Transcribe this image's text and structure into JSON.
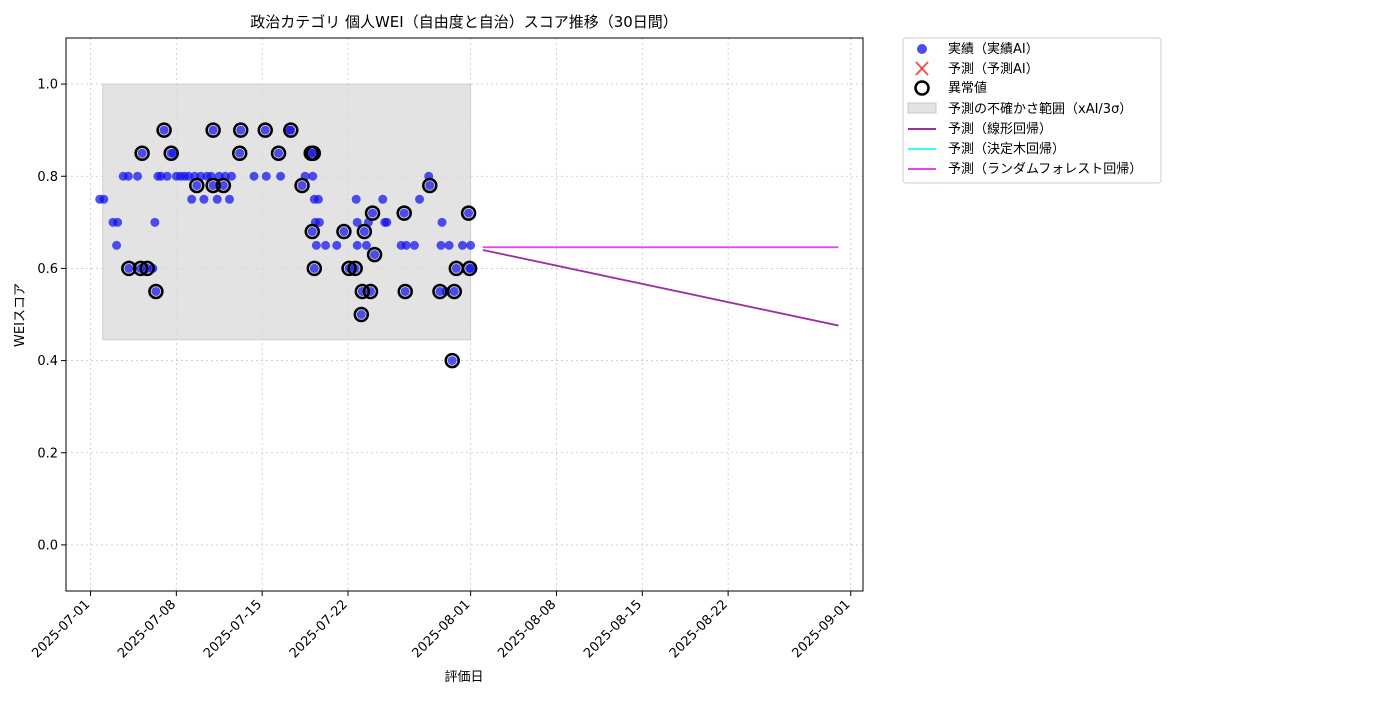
{
  "chart_data": {
    "type": "scatter",
    "title": "政治カテゴリ 個人WEI（自由度と自治）スコア推移（30日間）",
    "xlabel": "評価日",
    "ylabel": "WEIスコア",
    "xlim": [
      "2025-06-29",
      "2025-09-02"
    ],
    "ylim": [
      -0.1,
      1.1
    ],
    "x_ticks": [
      "2025-07-01",
      "2025-07-08",
      "2025-07-15",
      "2025-07-22",
      "2025-08-01",
      "2025-08-08",
      "2025-08-15",
      "2025-08-22",
      "2025-09-01"
    ],
    "y_ticks": [
      "0.0",
      "0.2",
      "0.4",
      "0.6",
      "0.8",
      "1.0"
    ],
    "grid": true,
    "legend_position": "outside-top-right",
    "legend": {
      "actual": "実績（実績AI）",
      "predicted": "予測（予測AI）",
      "anomaly": "異常値",
      "uncertainty": "予測の不確かさ範囲（xAI/3σ）",
      "linear": "予測（線形回帰）",
      "tree": "予測（決定木回帰）",
      "forest": "予測（ランダムフォレスト回帰）"
    },
    "colors": {
      "actual": "#1010ee",
      "predicted": "#ee3333",
      "anomaly": "#000000",
      "uncertainty": "#d9d9d9",
      "linear": "#9b30a0",
      "tree": "#33ffff",
      "forest": "#ee40ee"
    },
    "uncertainty_band": {
      "x": [
        "2025-07-02",
        "2025-08-01"
      ],
      "y": [
        0.445,
        1.0
      ]
    },
    "actual": [
      [
        "2025-07-01 18:00",
        0.75
      ],
      [
        "2025-07-02 02:00",
        0.75
      ],
      [
        "2025-07-02 20:00",
        0.7
      ],
      [
        "2025-07-03 05:00",
        0.7
      ],
      [
        "2025-07-03 03:00",
        0.65
      ],
      [
        "2025-07-03 16:00",
        0.8
      ],
      [
        "2025-07-04 02:00",
        0.8
      ],
      [
        "2025-07-04 03:00",
        0.6
      ],
      [
        "2025-07-04 20:00",
        0.8
      ],
      [
        "2025-07-05 05:00",
        0.85
      ],
      [
        "2025-07-05 02:00",
        0.6
      ],
      [
        "2025-07-05 15:00",
        0.6
      ],
      [
        "2025-07-06 02:00",
        0.6
      ],
      [
        "2025-07-06 08:00",
        0.55
      ],
      [
        "2025-07-06 06:00",
        0.7
      ],
      [
        "2025-07-06 12:00",
        0.8
      ],
      [
        "2025-07-06 18:00",
        0.8
      ],
      [
        "2025-07-07 00:00",
        0.9
      ],
      [
        "2025-07-07 06:00",
        0.8
      ],
      [
        "2025-07-07 14:00",
        0.85
      ],
      [
        "2025-07-07 18:00",
        0.85
      ],
      [
        "2025-07-08 00:00",
        0.8
      ],
      [
        "2025-07-08 08:00",
        0.8
      ],
      [
        "2025-07-08 16:00",
        0.8
      ],
      [
        "2025-07-09 00:00",
        0.8
      ],
      [
        "2025-07-09 06:00",
        0.75
      ],
      [
        "2025-07-09 12:00",
        0.8
      ],
      [
        "2025-07-09 16:00",
        0.78
      ],
      [
        "2025-07-10 00:00",
        0.8
      ],
      [
        "2025-07-10 06:00",
        0.75
      ],
      [
        "2025-07-10 12:00",
        0.8
      ],
      [
        "2025-07-10 20:00",
        0.8
      ],
      [
        "2025-07-11 00:00",
        0.9
      ],
      [
        "2025-07-11 00:00",
        0.78
      ],
      [
        "2025-07-11 08:00",
        0.75
      ],
      [
        "2025-07-11 12:00",
        0.8
      ],
      [
        "2025-07-11 20:00",
        0.78
      ],
      [
        "2025-07-12 00:00",
        0.8
      ],
      [
        "2025-07-12 08:00",
        0.75
      ],
      [
        "2025-07-12 12:00",
        0.8
      ],
      [
        "2025-07-13 04:00",
        0.85
      ],
      [
        "2025-07-13 06:00",
        0.9
      ],
      [
        "2025-07-14 08:00",
        0.8
      ],
      [
        "2025-07-15 06:00",
        0.9
      ],
      [
        "2025-07-15 08:00",
        0.8
      ],
      [
        "2025-07-16 08:00",
        0.85
      ],
      [
        "2025-07-16 12:00",
        0.8
      ],
      [
        "2025-07-17 06:00",
        0.9
      ],
      [
        "2025-07-17 08:00",
        0.9
      ],
      [
        "2025-07-18 06:00",
        0.78
      ],
      [
        "2025-07-18 12:00",
        0.8
      ],
      [
        "2025-07-19 00:00",
        0.85
      ],
      [
        "2025-07-19 02:00",
        0.68
      ],
      [
        "2025-07-19 03:00",
        0.8
      ],
      [
        "2025-07-19 04:00",
        0.85
      ],
      [
        "2025-07-19 06:00",
        0.6
      ],
      [
        "2025-07-19 06:00",
        0.75
      ],
      [
        "2025-07-19 08:00",
        0.7
      ],
      [
        "2025-07-19 10:00",
        0.65
      ],
      [
        "2025-07-19 14:00",
        0.75
      ],
      [
        "2025-07-19 16:00",
        0.7
      ],
      [
        "2025-07-20 04:00",
        0.65
      ],
      [
        "2025-07-21 02:00",
        0.65
      ],
      [
        "2025-07-21 16:00",
        0.68
      ],
      [
        "2025-07-22 02:00",
        0.6
      ],
      [
        "2025-07-22 14:00",
        0.6
      ],
      [
        "2025-07-22 16:00",
        0.75
      ],
      [
        "2025-07-22 18:00",
        0.65
      ],
      [
        "2025-07-22 18:00",
        0.7
      ],
      [
        "2025-07-23 02:00",
        0.5
      ],
      [
        "2025-07-23 04:00",
        0.55
      ],
      [
        "2025-07-23 08:00",
        0.68
      ],
      [
        "2025-07-23 12:00",
        0.65
      ],
      [
        "2025-07-23 16:00",
        0.7
      ],
      [
        "2025-07-23 20:00",
        0.55
      ],
      [
        "2025-07-24 00:00",
        0.72
      ],
      [
        "2025-07-24 04:00",
        0.63
      ],
      [
        "2025-07-24 20:00",
        0.75
      ],
      [
        "2025-07-25 00:00",
        0.7
      ],
      [
        "2025-07-25 04:00",
        0.7
      ],
      [
        "2025-07-26 08:00",
        0.65
      ],
      [
        "2025-07-26 14:00",
        0.72
      ],
      [
        "2025-07-26 16:00",
        0.55
      ],
      [
        "2025-07-26 18:00",
        0.65
      ],
      [
        "2025-07-27 10:00",
        0.65
      ],
      [
        "2025-07-27 20:00",
        0.75
      ],
      [
        "2025-07-28 14:00",
        0.8
      ],
      [
        "2025-07-28 16:00",
        0.78
      ],
      [
        "2025-07-29 12:00",
        0.55
      ],
      [
        "2025-07-29 14:00",
        0.65
      ],
      [
        "2025-07-29 16:00",
        0.7
      ],
      [
        "2025-07-30 00:00",
        0.55
      ],
      [
        "2025-07-30 06:00",
        0.65
      ],
      [
        "2025-07-30 12:00",
        0.4
      ],
      [
        "2025-07-30 16:00",
        0.55
      ],
      [
        "2025-07-30 20:00",
        0.6
      ],
      [
        "2025-07-31 08:00",
        0.65
      ],
      [
        "2025-07-31 20:00",
        0.72
      ],
      [
        "2025-07-31 22:00",
        0.6
      ],
      [
        "2025-08-01 00:00",
        0.65
      ],
      [
        "2025-08-01 00:00",
        0.6
      ]
    ],
    "anomalies": [
      [
        "2025-07-04 03:00",
        0.6
      ],
      [
        "2025-07-05 05:00",
        0.85
      ],
      [
        "2025-07-05 02:00",
        0.6
      ],
      [
        "2025-07-05 15:00",
        0.6
      ],
      [
        "2025-07-06 08:00",
        0.55
      ],
      [
        "2025-07-07 00:00",
        0.9
      ],
      [
        "2025-07-07 14:00",
        0.85
      ],
      [
        "2025-07-09 16:00",
        0.78
      ],
      [
        "2025-07-11 00:00",
        0.9
      ],
      [
        "2025-07-11 00:00",
        0.78
      ],
      [
        "2025-07-11 20:00",
        0.78
      ],
      [
        "2025-07-13 04:00",
        0.85
      ],
      [
        "2025-07-13 06:00",
        0.9
      ],
      [
        "2025-07-15 06:00",
        0.9
      ],
      [
        "2025-07-16 08:00",
        0.85
      ],
      [
        "2025-07-17 08:00",
        0.9
      ],
      [
        "2025-07-18 06:00",
        0.78
      ],
      [
        "2025-07-19 00:00",
        0.85
      ],
      [
        "2025-07-19 04:00",
        0.85
      ],
      [
        "2025-07-19 02:00",
        0.68
      ],
      [
        "2025-07-19 06:00",
        0.6
      ],
      [
        "2025-07-21 16:00",
        0.68
      ],
      [
        "2025-07-22 02:00",
        0.6
      ],
      [
        "2025-07-22 14:00",
        0.6
      ],
      [
        "2025-07-23 02:00",
        0.5
      ],
      [
        "2025-07-23 04:00",
        0.55
      ],
      [
        "2025-07-23 08:00",
        0.68
      ],
      [
        "2025-07-23 20:00",
        0.55
      ],
      [
        "2025-07-24 00:00",
        0.72
      ],
      [
        "2025-07-24 04:00",
        0.63
      ],
      [
        "2025-07-26 14:00",
        0.72
      ],
      [
        "2025-07-26 16:00",
        0.55
      ],
      [
        "2025-07-28 16:00",
        0.78
      ],
      [
        "2025-07-29 12:00",
        0.55
      ],
      [
        "2025-07-30 12:00",
        0.4
      ],
      [
        "2025-07-30 16:00",
        0.55
      ],
      [
        "2025-07-30 20:00",
        0.6
      ],
      [
        "2025-07-31 20:00",
        0.72
      ],
      [
        "2025-07-31 22:00",
        0.6
      ]
    ],
    "predicted_points": [],
    "linear_regression": {
      "x": [
        "2025-08-02",
        "2025-08-31"
      ],
      "y": [
        0.64,
        0.476
      ]
    },
    "decision_tree": {
      "x": [
        "2025-08-02",
        "2025-08-31"
      ],
      "y": [
        0.646,
        0.646
      ]
    },
    "random_forest": {
      "x": [
        "2025-08-02",
        "2025-08-31"
      ],
      "y": [
        0.646,
        0.646
      ]
    }
  }
}
